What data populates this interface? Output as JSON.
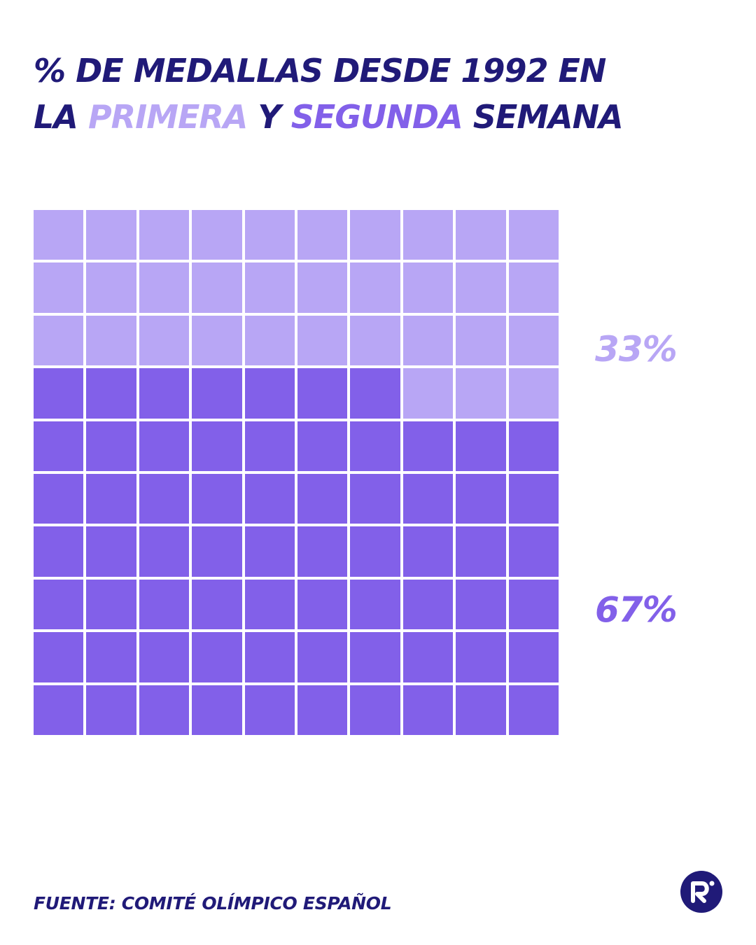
{
  "title": {
    "line1": "% DE MEDALLAS DESDE 1992 EN",
    "line2_pre": "LA ",
    "line2_w1": "PRIMERA",
    "line2_mid": " Y ",
    "line2_w2": "SEGUNDA",
    "line2_post": " SEMANA"
  },
  "chart_data": {
    "type": "waffle",
    "grid": {
      "rows": 10,
      "cols": 10
    },
    "series": [
      {
        "name": "PRIMERA",
        "value": 33,
        "label": "33%",
        "color": "#b8a6f5"
      },
      {
        "name": "SEGUNDA",
        "value": 67,
        "label": "67%",
        "color": "#8260e9"
      }
    ],
    "fill_order": "bottom-up"
  },
  "source": "FUENTE: COMITÉ OLÍMPICO ESPAÑOL",
  "colors": {
    "navy": "#201a78",
    "primera": "#b8a6f5",
    "segunda": "#8260e9",
    "background": "#ffffff"
  },
  "logo": {
    "icon": "r-logo-icon"
  }
}
